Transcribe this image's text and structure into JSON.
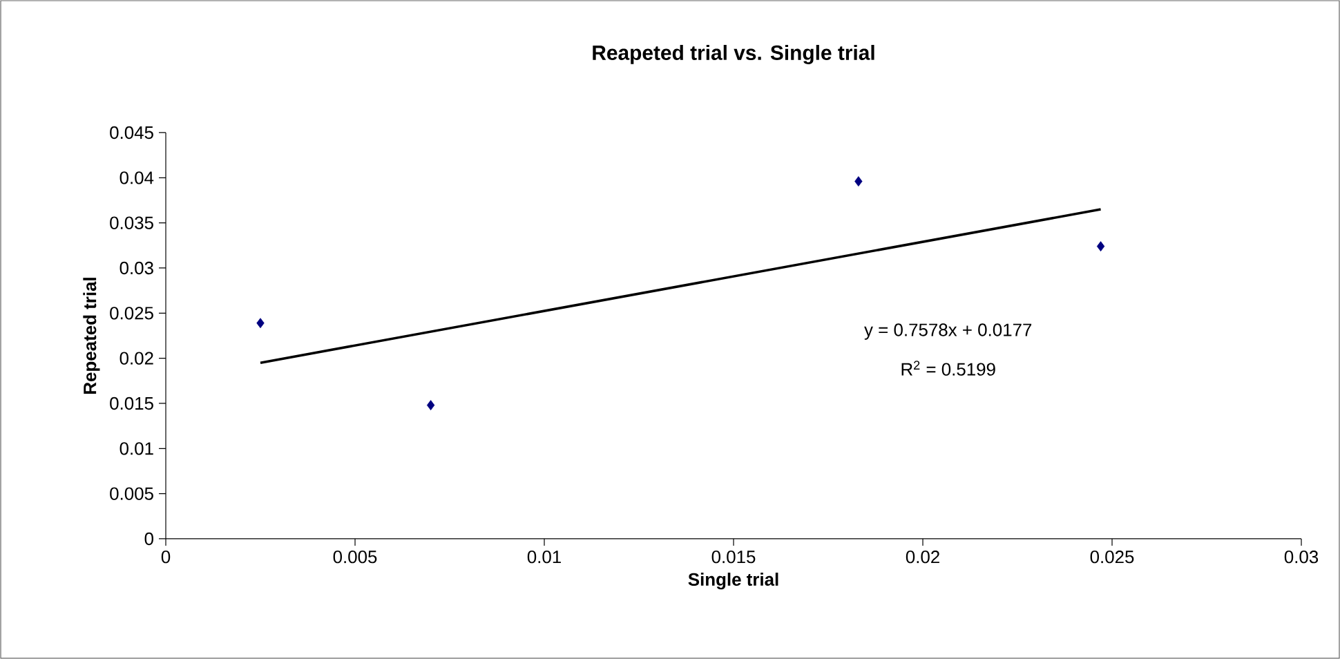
{
  "chart_data": {
    "type": "scatter",
    "title": "Reapeted trial vs. Single trial",
    "xlabel": "Single trial",
    "ylabel": "Repeated trial",
    "series": [
      {
        "color": "#000080",
        "x": [
          0.0025,
          0.007,
          0.0183,
          0.0247
        ],
        "values": [
          0.0239,
          0.0148,
          0.0396,
          0.0324
        ]
      },
      {
        "type": "line",
        "color": "#000000",
        "marker": "none",
        "x": [
          0.0025,
          0.0247
        ],
        "values": [
          0.0195,
          0.0365
        ]
      }
    ],
    "marker": "diamond",
    "xlim": [
      0,
      0.03
    ],
    "ylim": [
      0,
      0.045
    ],
    "xticks": [
      0,
      0.005,
      0.01,
      0.015,
      0.02,
      0.025,
      0.03
    ],
    "yticks": [
      0,
      0.005,
      0.01,
      0.015,
      0.02,
      0.025,
      0.03,
      0.035,
      0.04,
      0.045
    ],
    "annotations": [
      "y = 0.7578x + 0.0177",
      "R$^{2}$ = 0.5199"
    ]
  }
}
